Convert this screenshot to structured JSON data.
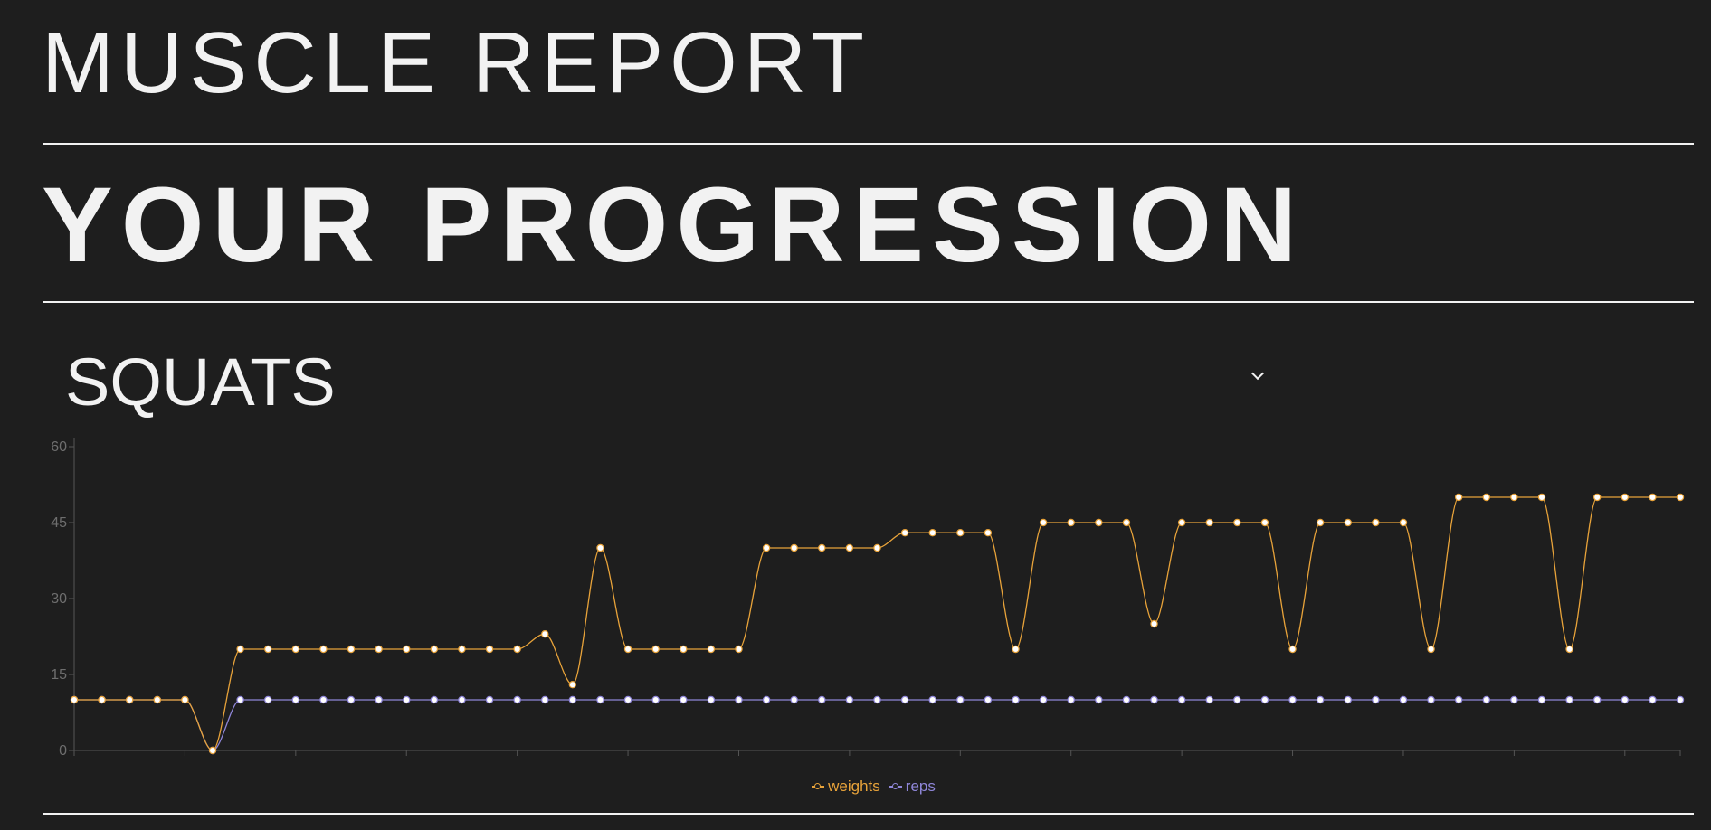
{
  "header": {
    "app_title": "MUSCLE REPORT",
    "section_title": "YOUR PROGRESSION"
  },
  "exercise_select": {
    "selected": "SQUATS",
    "icon": "chevron-down-icon"
  },
  "colors": {
    "background": "#1e1e1e",
    "text": "#f2f2f2",
    "weights": "#e8a33a",
    "reps": "#8f86d8",
    "axis": "#555555",
    "tick_text": "#6e6e6e"
  },
  "chart_data": {
    "type": "line",
    "title": "",
    "xlabel": "",
    "ylabel": "",
    "ylim": [
      0,
      60
    ],
    "yticks": [
      "0",
      "15",
      "30",
      "45",
      "60"
    ],
    "grid": false,
    "legend_position": "bottom",
    "x_tick_every": 4,
    "series": [
      {
        "name": "weights",
        "color": "#e8a33a",
        "values": [
          10,
          10,
          10,
          10,
          10,
          0,
          20,
          20,
          20,
          20,
          20,
          20,
          20,
          20,
          20,
          20,
          20,
          23,
          13,
          40,
          20,
          20,
          20,
          20,
          20,
          40,
          40,
          40,
          40,
          40,
          43,
          43,
          43,
          43,
          20,
          45,
          45,
          45,
          45,
          25,
          45,
          45,
          45,
          45,
          20,
          45,
          45,
          45,
          45,
          20,
          50,
          50,
          50,
          50,
          20,
          50,
          50,
          50,
          50
        ]
      },
      {
        "name": "reps",
        "color": "#8f86d8",
        "values": [
          10,
          10,
          10,
          10,
          10,
          0,
          10,
          10,
          10,
          10,
          10,
          10,
          10,
          10,
          10,
          10,
          10,
          10,
          10,
          10,
          10,
          10,
          10,
          10,
          10,
          10,
          10,
          10,
          10,
          10,
          10,
          10,
          10,
          10,
          10,
          10,
          10,
          10,
          10,
          10,
          10,
          10,
          10,
          10,
          10,
          10,
          10,
          10,
          10,
          10,
          10,
          10,
          10,
          10,
          10,
          10,
          10,
          10,
          10
        ]
      }
    ]
  }
}
